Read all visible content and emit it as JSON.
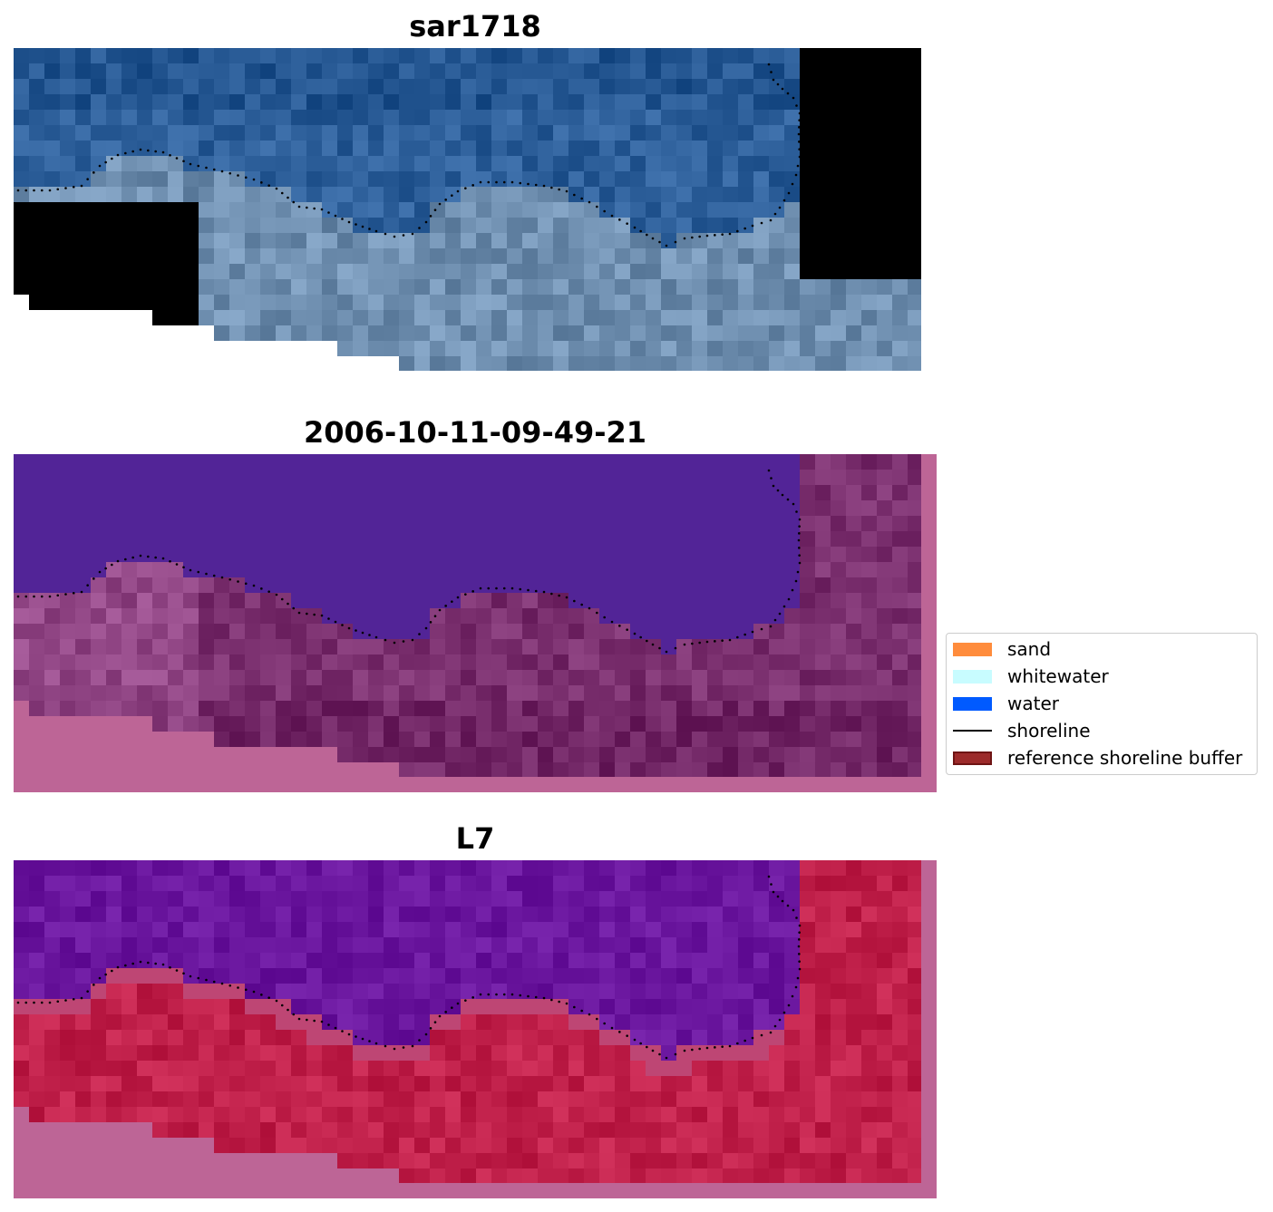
{
  "panels": [
    {
      "title": "sar1718",
      "style": "rgb"
    },
    {
      "title": "2006-10-11-09-49-21",
      "style": "classified"
    },
    {
      "title": "L7",
      "style": "index"
    }
  ],
  "legend": {
    "items": [
      {
        "label": "sand",
        "kind": "patch",
        "color": "#ff8c3c"
      },
      {
        "label": "whitewater",
        "kind": "patch",
        "color": "#c8fcff"
      },
      {
        "label": "water",
        "kind": "patch",
        "color": "#005aff"
      },
      {
        "label": "shoreline",
        "kind": "line",
        "color": "#000000"
      },
      {
        "label": "reference shoreline buffer",
        "kind": "patch",
        "color": "#9c2a2a",
        "edge": "#6e1414"
      }
    ]
  },
  "colors": {
    "nodata_magenta": "#bd6596",
    "water_class": "#522497",
    "land_class": "#7a2f6e",
    "index_water": "#6a169e",
    "index_land": "#c0204a",
    "rgb_water": "#2d5f9a",
    "rgb_land": "#6f8fb0"
  }
}
